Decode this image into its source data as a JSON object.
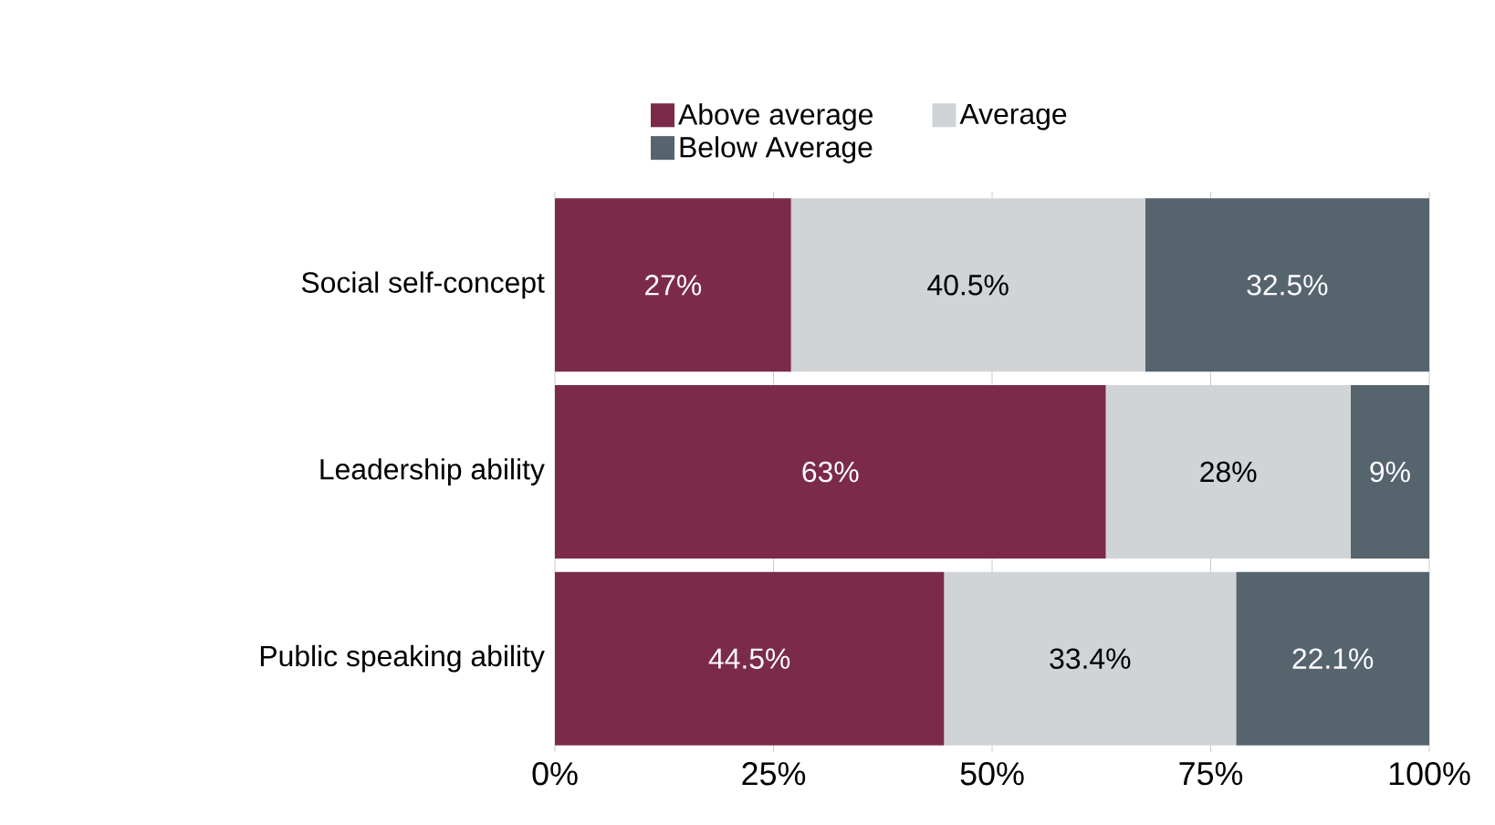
{
  "chart_data": {
    "type": "bar",
    "orientation": "horizontal",
    "stacked": true,
    "categories": [
      "Social self-concept",
      "Leadership ability",
      "Public speaking ability"
    ],
    "series": [
      {
        "name": "Above average",
        "color": "#7b2a4a",
        "values": [
          27,
          63,
          44.5
        ],
        "value_labels": [
          "27%",
          "63%",
          "44.5%"
        ]
      },
      {
        "name": "Average",
        "color": "#d0d4d7",
        "values": [
          40.5,
          28,
          33.4
        ],
        "value_labels": [
          "40.5%",
          "28%",
          "33.4%"
        ]
      },
      {
        "name": "Below Average",
        "color": "#56646e",
        "values": [
          32.5,
          9,
          22.1
        ],
        "value_labels": [
          "32.5%",
          "9%",
          "22.1%"
        ]
      }
    ],
    "xlim": [
      0,
      100
    ],
    "xticks": [
      {
        "value": 0,
        "label": "0%"
      },
      {
        "value": 25,
        "label": "25%"
      },
      {
        "value": 50,
        "label": "50%"
      },
      {
        "value": 75,
        "label": "75%"
      },
      {
        "value": 100,
        "label": "100%"
      }
    ],
    "grid": "x",
    "legend": "top"
  }
}
